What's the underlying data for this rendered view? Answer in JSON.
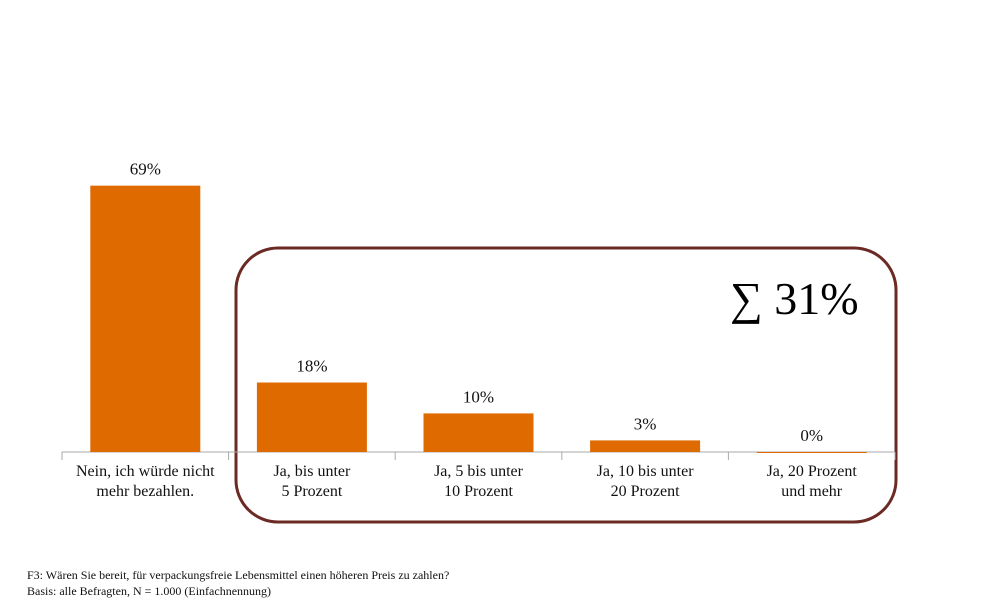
{
  "chart_data": {
    "type": "bar",
    "categories": [
      "Nein, ich würde nicht\nmehr bezahlen.",
      "Ja, bis unter\n5 Prozent",
      "Ja, 5 bis unter\n10 Prozent",
      "Ja, 10 bis unter\n20 Prozent",
      "Ja, 20 Prozent\nund mehr"
    ],
    "values": [
      69,
      18,
      10,
      3,
      0
    ],
    "value_labels": [
      "69%",
      "18%",
      "10%",
      "3%",
      "0%"
    ],
    "color": "#df6a00",
    "ylim": [
      0,
      100
    ],
    "annotation": "∑ 31%",
    "footnotes": [
      "F3: Wären Sie bereit, für verpackungsfreie Lebensmittel einen höheren Preis zu zahlen?",
      "Basis: alle Befragten, N = 1.000 (Einfachnennung)"
    ]
  }
}
